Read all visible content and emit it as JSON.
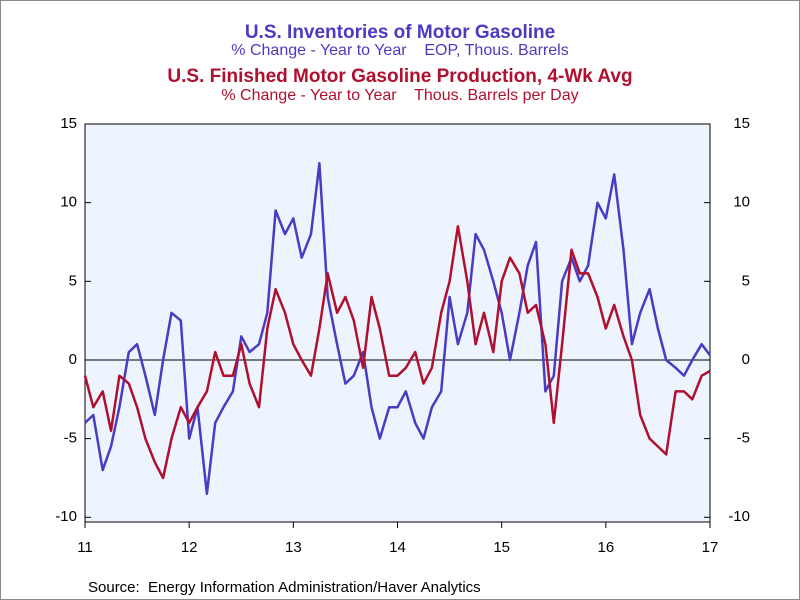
{
  "chart_data": {
    "type": "line",
    "series": [
      {
        "name": "U.S. Inventories of Motor Gasoline",
        "subtitle": "% Change - Year to Year    EOP, Thous. Barrels",
        "color": "#4b3bc2",
        "values": [
          -4,
          -3.5,
          -7,
          -5.5,
          -3,
          0.5,
          1,
          -1,
          -3.5,
          0,
          3,
          2.5,
          -5,
          -3,
          -8.5,
          -4,
          -3,
          -2,
          1.5,
          0.5,
          1,
          3,
          9.5,
          8,
          9,
          6.5,
          8,
          12.5,
          4,
          1,
          -1.5,
          -1,
          0.5,
          -3,
          -5,
          -3,
          -3,
          -2,
          -4,
          -5,
          -3,
          -2,
          4,
          1,
          3,
          8,
          7,
          5,
          3,
          0,
          3,
          6,
          7.5,
          -2,
          -1,
          5,
          6.5,
          5,
          6,
          10,
          9,
          11.8,
          7,
          1,
          3,
          4.5,
          2,
          0,
          -0.5,
          -1,
          0,
          1,
          0.3
        ]
      },
      {
        "name": "U.S. Finished Motor Gasoline Production, 4-Wk Avg",
        "subtitle": "% Change - Year to Year    Thous. Barrels per Day",
        "color": "#b01030",
        "axis": "y2",
        "values": [
          -1,
          -3,
          -2,
          -4.5,
          -1,
          -1.5,
          -3,
          -5,
          -6.5,
          -7.5,
          -5,
          -3,
          -4,
          -3,
          -2,
          0.5,
          -1,
          -1,
          1,
          -1.5,
          -3,
          2,
          4.5,
          3,
          1,
          0,
          -1,
          2,
          5.5,
          3,
          4,
          2.5,
          -0.5,
          4,
          2,
          -1,
          -1,
          -0.5,
          0.5,
          -1.5,
          -0.5,
          3,
          5,
          8.5,
          5,
          1,
          3,
          0.5,
          5,
          6.5,
          5.5,
          3,
          3.5,
          1,
          -4,
          1,
          7,
          5.5,
          5.5,
          4,
          2,
          3.5,
          1.5,
          0,
          -3.5,
          -5,
          -5.5,
          -6,
          -2,
          -2,
          -2.5,
          -1,
          -0.7
        ]
      }
    ],
    "x": [
      11,
      11.08,
      11.17,
      11.25,
      11.33,
      11.42,
      11.5,
      11.58,
      11.67,
      11.75,
      11.83,
      11.92,
      12,
      12.08,
      12.17,
      12.25,
      12.33,
      12.42,
      12.5,
      12.58,
      12.67,
      12.75,
      12.83,
      12.92,
      13,
      13.08,
      13.17,
      13.25,
      13.33,
      13.42,
      13.5,
      13.58,
      13.67,
      13.75,
      13.83,
      13.92,
      14,
      14.08,
      14.17,
      14.25,
      14.33,
      14.42,
      14.5,
      14.58,
      14.67,
      14.75,
      14.83,
      14.92,
      15,
      15.08,
      15.17,
      15.25,
      15.33,
      15.42,
      15.5,
      15.58,
      15.67,
      15.75,
      15.83,
      15.92,
      16,
      16.08,
      16.17,
      16.25,
      16.33,
      16.42,
      16.5,
      16.58,
      16.67,
      16.75,
      16.83,
      16.92,
      17
    ],
    "xlim": [
      11,
      17
    ],
    "xticks": [
      11,
      12,
      13,
      14,
      15,
      16,
      17
    ],
    "ylim": [
      -10.3,
      15
    ],
    "yticks": [
      -10,
      -5,
      0,
      5,
      10,
      15
    ],
    "y2lim": [
      -10.3,
      15
    ],
    "y2ticks": [
      -10,
      -5,
      0,
      5,
      10,
      15
    ],
    "source": "Source:  Energy Information Administration/Haver Analytics"
  }
}
